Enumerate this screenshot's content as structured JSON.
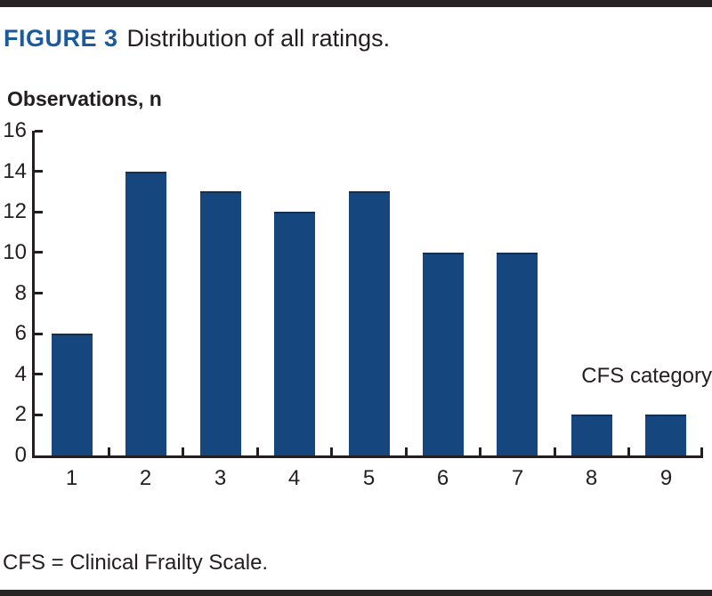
{
  "figure": {
    "label": "FIGURE 3",
    "caption": "Distribution of all ratings.",
    "footnote": "CFS = Clinical Frailty Scale."
  },
  "chart_data": {
    "type": "bar",
    "title": "Distribution of all ratings.",
    "categories": [
      "1",
      "2",
      "3",
      "4",
      "5",
      "6",
      "7",
      "8",
      "9"
    ],
    "values": [
      6,
      14,
      13,
      12,
      13,
      10,
      10,
      2,
      2
    ],
    "xlabel": "CFS category",
    "ylabel": "Observations, n",
    "ylim": [
      0,
      16
    ],
    "ytick_step": 2,
    "yticks": [
      0,
      2,
      4,
      6,
      8,
      10,
      12,
      14,
      16
    ],
    "grid": false,
    "legend": "none",
    "bar_color": "#15477e",
    "bar_edge_color": "#142f52"
  },
  "colors": {
    "figure_label_blue": "#1c5a9e",
    "text_dark": "#231f20",
    "rule_dark": "#272223",
    "background": "#ffffff"
  }
}
